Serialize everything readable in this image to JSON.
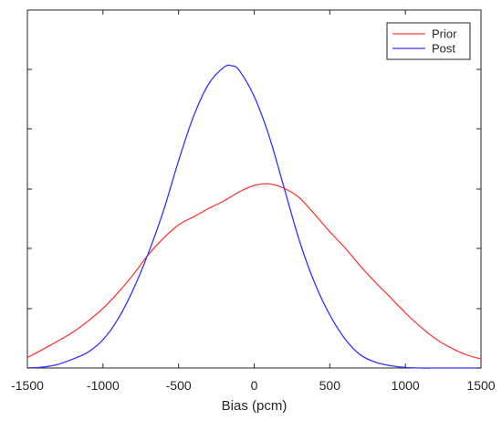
{
  "chart_data": {
    "type": "line",
    "title": "",
    "xlabel": "Bias (pcm)",
    "ylabel": "",
    "xlim": [
      -1500,
      1500
    ],
    "ylim": [
      0,
      1
    ],
    "xticks": [
      -1500,
      -1000,
      -500,
      0,
      500,
      1000,
      1500
    ],
    "xtick_labels": [
      "-1500",
      "-1000",
      "-500",
      "0",
      "500",
      "1000",
      "1500"
    ],
    "yticks": [
      0,
      0.2,
      0.4,
      0.6,
      0.8,
      1.0
    ],
    "ytick_labels_visible": false,
    "grid": false,
    "legend_position": "top-right",
    "series": [
      {
        "name": "Prior",
        "color": "#ff3b3b",
        "x": [
          -1500,
          -1400,
          -1300,
          -1200,
          -1100,
          -1000,
          -900,
          -800,
          -700,
          -600,
          -500,
          -400,
          -300,
          -200,
          -100,
          0,
          100,
          200,
          300,
          400,
          500,
          600,
          700,
          800,
          900,
          1000,
          1100,
          1200,
          1300,
          1400,
          1500
        ],
        "y": [
          0.035,
          0.062,
          0.09,
          0.12,
          0.157,
          0.2,
          0.253,
          0.313,
          0.38,
          0.435,
          0.48,
          0.507,
          0.535,
          0.56,
          0.59,
          0.612,
          0.617,
          0.602,
          0.57,
          0.515,
          0.457,
          0.403,
          0.343,
          0.288,
          0.237,
          0.185,
          0.138,
          0.098,
          0.068,
          0.045,
          0.03
        ]
      },
      {
        "name": "Post",
        "color": "#3333ff",
        "x": [
          -1500,
          -1400,
          -1300,
          -1200,
          -1100,
          -1000,
          -900,
          -800,
          -700,
          -600,
          -500,
          -400,
          -300,
          -200,
          -150,
          -100,
          0,
          100,
          200,
          300,
          400,
          500,
          600,
          700,
          800,
          900,
          1000,
          1100,
          1200,
          1300,
          1400,
          1500
        ],
        "y": [
          0.0,
          0.003,
          0.012,
          0.03,
          0.053,
          0.095,
          0.165,
          0.263,
          0.385,
          0.527,
          0.695,
          0.845,
          0.953,
          1.008,
          1.013,
          0.998,
          0.91,
          0.775,
          0.6,
          0.425,
          0.285,
          0.178,
          0.098,
          0.045,
          0.02,
          0.008,
          0.002,
          0.0,
          0.0,
          0.0,
          0.0,
          0.0
        ]
      }
    ]
  }
}
